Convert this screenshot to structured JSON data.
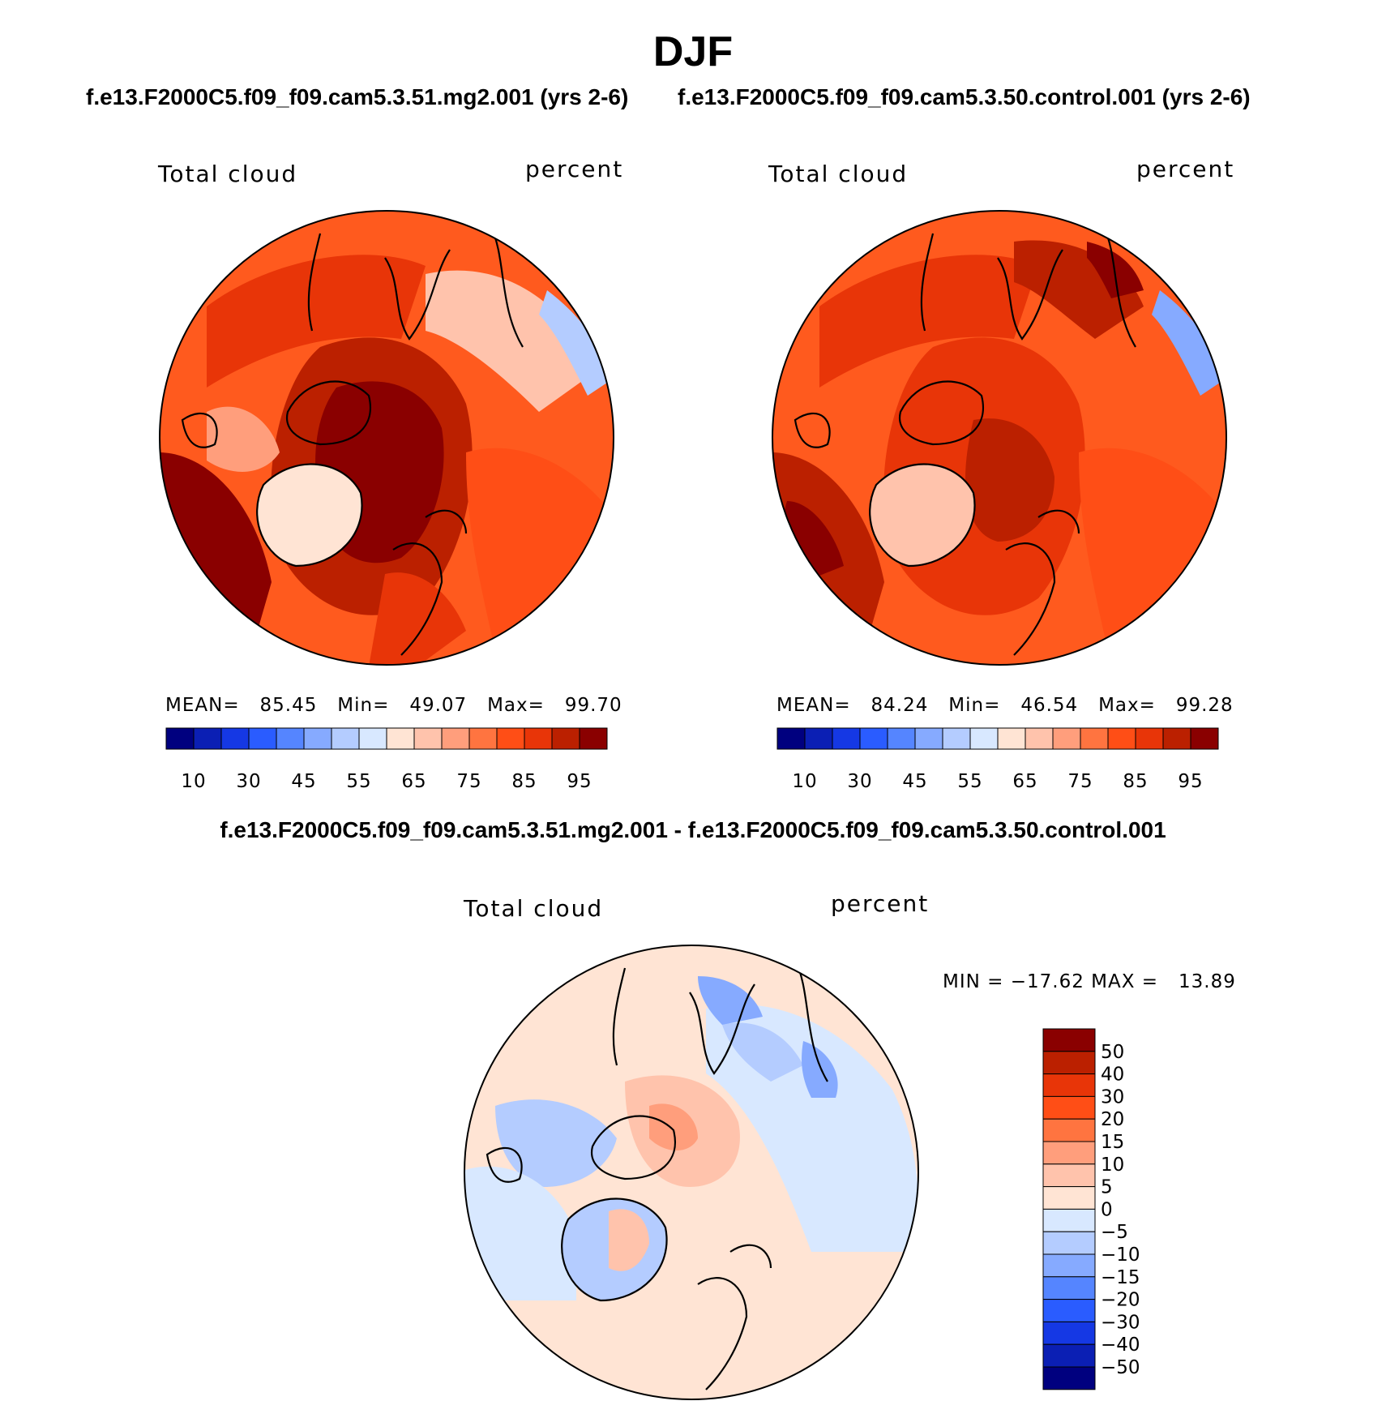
{
  "title": "DJF",
  "cases": {
    "test": "f.e13.F2000C5.f09_f09.cam5.3.51.mg2.001 (yrs 2-6)",
    "control": "f.e13.F2000C5.f09_f09.cam5.3.50.control.001 (yrs 2-6)"
  },
  "diff_title": "f.e13.F2000C5.f09_f09.cam5.3.51.mg2.001 - f.e13.F2000C5.f09_f09.cam5.3.50.control.001",
  "panels": [
    {
      "variable": "Total cloud",
      "units": "percent",
      "stats": "MEAN=   85.45   Min=   49.07   Max=   99.70",
      "mean": 85.45,
      "min": 49.07,
      "max": 99.7
    },
    {
      "variable": "Total cloud",
      "units": "percent",
      "stats": "MEAN=   84.24   Min=   46.54   Max=   99.28",
      "mean": 84.24,
      "min": 46.54,
      "max": 99.28
    }
  ],
  "diff_panel": {
    "variable": "Total cloud",
    "units": "percent",
    "stats": "MIN = −17.62 MAX =   13.89",
    "min": -17.62,
    "max": 13.89
  },
  "colorbar_main": {
    "labels": [
      "10",
      "30",
      "45",
      "55",
      "65",
      "75",
      "85",
      "95"
    ],
    "colors": [
      "#00007f",
      "#0b1fb4",
      "#1538e4",
      "#2a5cff",
      "#5585ff",
      "#86aaff",
      "#b4ccff",
      "#d8e8ff",
      "#ffe4d4",
      "#ffc3ac",
      "#ff9e7c",
      "#ff7440",
      "#ff4e16",
      "#e83508",
      "#bb2000",
      "#8a0000"
    ]
  },
  "colorbar_diff": {
    "labels": [
      "50",
      "40",
      "30",
      "20",
      "15",
      "10",
      "5",
      "0",
      "−5",
      "−10",
      "−15",
      "−20",
      "−30",
      "−40",
      "−50"
    ],
    "colors": [
      "#8a0000",
      "#bb2000",
      "#e83508",
      "#ff4e16",
      "#ff7440",
      "#ff9e7c",
      "#ffc3ac",
      "#ffe4d4",
      "#d8e8ff",
      "#b4ccff",
      "#86aaff",
      "#5585ff",
      "#2a5cff",
      "#1538e4",
      "#0b1fb4",
      "#00007f"
    ]
  },
  "colors": {
    "land_outline": "#000000",
    "map_bg_test": "#ff5a1e",
    "map_bg_control": "#ff5a1e",
    "map_bg_diff": "#ffe4d4"
  }
}
